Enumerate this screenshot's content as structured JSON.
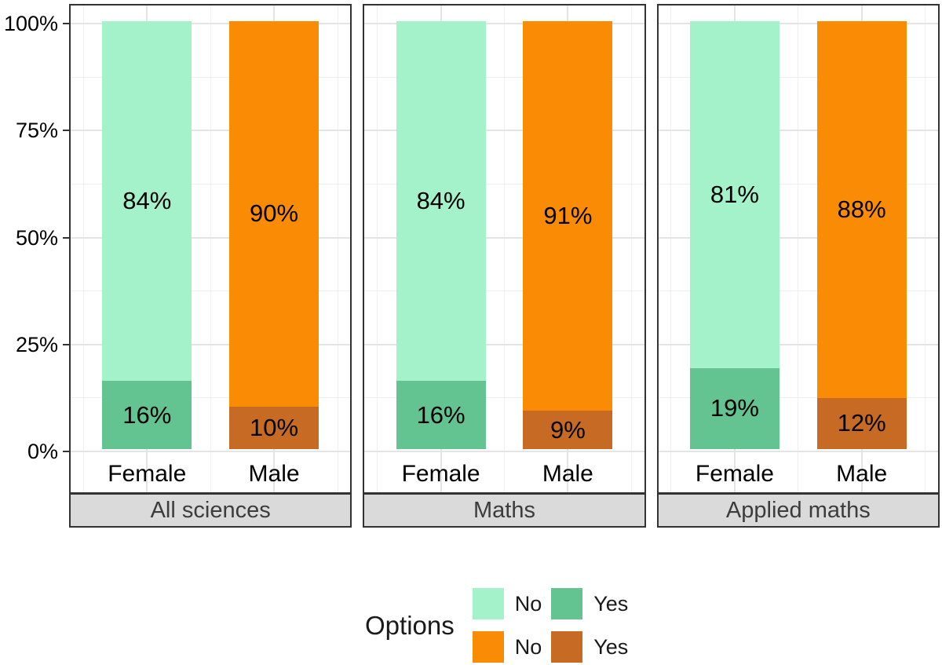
{
  "chart_data": {
    "type": "bar",
    "variant": "stacked-percent-faceted",
    "x_categories": [
      "Female",
      "Male"
    ],
    "y_axis": {
      "range": [
        0,
        100
      ],
      "ticks": [
        {
          "value": 100,
          "label": "100%"
        },
        {
          "value": 75,
          "label": "75%"
        },
        {
          "value": 50,
          "label": "50%"
        },
        {
          "value": 25,
          "label": "25%"
        },
        {
          "value": 0,
          "label": "0%"
        }
      ],
      "minor_ticks": [
        12.5,
        37.5,
        62.5,
        87.5
      ]
    },
    "facets": [
      {
        "label": "All sciences",
        "bars": [
          {
            "category": "Female",
            "segments": [
              {
                "option": "No",
                "value": 84,
                "label": "84%",
                "color": "#a3f2c9"
              },
              {
                "option": "Yes",
                "value": 16,
                "label": "16%",
                "color": "#63c391"
              }
            ]
          },
          {
            "category": "Male",
            "segments": [
              {
                "option": "No",
                "value": 90,
                "label": "90%",
                "color": "#f98c04"
              },
              {
                "option": "Yes",
                "value": 10,
                "label": "10%",
                "color": "#c76a24"
              }
            ]
          }
        ]
      },
      {
        "label": "Maths",
        "bars": [
          {
            "category": "Female",
            "segments": [
              {
                "option": "No",
                "value": 84,
                "label": "84%",
                "color": "#a3f2c9"
              },
              {
                "option": "Yes",
                "value": 16,
                "label": "16%",
                "color": "#63c391"
              }
            ]
          },
          {
            "category": "Male",
            "segments": [
              {
                "option": "No",
                "value": 91,
                "label": "91%",
                "color": "#f98c04"
              },
              {
                "option": "Yes",
                "value": 9,
                "label": "9%",
                "color": "#c76a24"
              }
            ]
          }
        ]
      },
      {
        "label": "Applied maths",
        "bars": [
          {
            "category": "Female",
            "segments": [
              {
                "option": "No",
                "value": 81,
                "label": "81%",
                "color": "#a3f2c9"
              },
              {
                "option": "Yes",
                "value": 19,
                "label": "19%",
                "color": "#63c391"
              }
            ]
          },
          {
            "category": "Male",
            "segments": [
              {
                "option": "No",
                "value": 88,
                "label": "88%",
                "color": "#f98c04"
              },
              {
                "option": "Yes",
                "value": 12,
                "label": "12%",
                "color": "#c76a24"
              }
            ]
          }
        ]
      }
    ],
    "legend": {
      "title": "Options",
      "entries": [
        {
          "label": "No",
          "color": "#a3f2c9"
        },
        {
          "label": "Yes",
          "color": "#63c391"
        },
        {
          "label": "No",
          "color": "#f98c04"
        },
        {
          "label": "Yes",
          "color": "#c76a24"
        }
      ]
    },
    "style": {
      "grid_major_color": "#e4e4e4",
      "grid_minor_color": "#f0f0f0",
      "panel_border_color": "#333333",
      "strip_background": "#dadada",
      "strip_text_color": "#3c3c3c"
    }
  }
}
